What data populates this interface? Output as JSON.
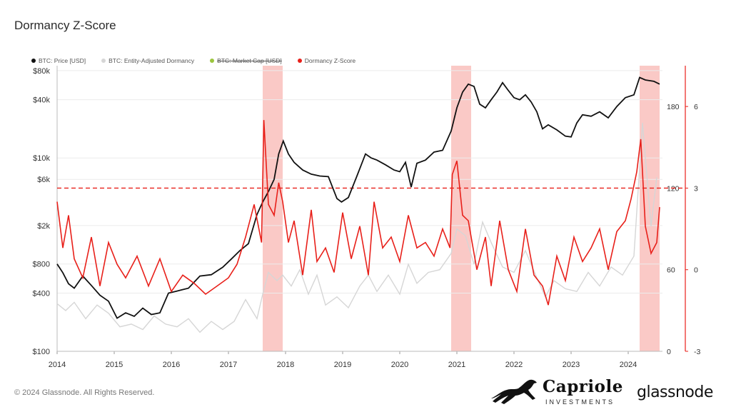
{
  "title": "Dormancy Z-Score",
  "legend": [
    {
      "label": "BTC: Price [USD]",
      "color": "#111111",
      "struck": false
    },
    {
      "label": "BTC: Entity-Adjusted Dormancy",
      "color": "#d6d6d6",
      "struck": false
    },
    {
      "label": "BTC: Market Cap [USD]",
      "color": "#9bc53d",
      "struck": true
    },
    {
      "label": "Dormancy Z-Score",
      "color": "#e8201a",
      "struck": false
    }
  ],
  "footer": {
    "copyright": "© 2024 Glassnode. All Rights Reserved.",
    "capriole_name": "Capriole",
    "capriole_sub": "INVESTMENTS",
    "glassnode": "glassnode"
  },
  "chart_data": {
    "type": "line",
    "x_ticks": [
      "2014",
      "2015",
      "2016",
      "2017",
      "2018",
      "2019",
      "2020",
      "2021",
      "2022",
      "2023",
      "2024"
    ],
    "x_range": [
      2014.0,
      2024.6
    ],
    "left_axis": {
      "scale": "log",
      "ticks": [
        "$100",
        "$400",
        "$800",
        "$2k",
        "$6k",
        "$10k",
        "$40k",
        "$80k"
      ],
      "tick_values": [
        100,
        400,
        800,
        2000,
        6000,
        10000,
        40000,
        80000
      ],
      "range": [
        100,
        90000
      ]
    },
    "right_axis_dormancy": {
      "ticks": [
        "0",
        "60",
        "120",
        "180"
      ],
      "tick_values": [
        0,
        60,
        120,
        180
      ],
      "range": [
        0,
        210
      ]
    },
    "right_axis_zscore": {
      "ticks": [
        "-3",
        "0",
        "3",
        "6"
      ],
      "tick_values": [
        -3,
        0,
        3,
        6
      ],
      "range": [
        -3,
        7.5
      ]
    },
    "threshold_zscore": 3,
    "highlight_periods": [
      [
        2017.6,
        2017.95
      ],
      [
        2020.9,
        2021.25
      ],
      [
        2024.2,
        2024.55
      ]
    ],
    "colors": {
      "price": "#111111",
      "dormancy": "#d6d6d6",
      "zscore": "#e8201a",
      "highlight": "#f8b7b3",
      "threshold": "#e8201a"
    },
    "series": [
      {
        "name": "BTC: Price [USD]",
        "axis": "left",
        "x": [
          2014.0,
          2014.1,
          2014.2,
          2014.3,
          2014.45,
          2014.6,
          2014.75,
          2014.9,
          2015.05,
          2015.2,
          2015.35,
          2015.5,
          2015.65,
          2015.8,
          2015.95,
          2016.1,
          2016.3,
          2016.5,
          2016.7,
          2016.9,
          2017.05,
          2017.2,
          2017.35,
          2017.5,
          2017.6,
          2017.7,
          2017.8,
          2017.88,
          2017.96,
          2018.05,
          2018.15,
          2018.3,
          2018.45,
          2018.6,
          2018.75,
          2018.9,
          2018.98,
          2019.1,
          2019.25,
          2019.4,
          2019.5,
          2019.6,
          2019.75,
          2019.9,
          2020.0,
          2020.1,
          2020.2,
          2020.3,
          2020.45,
          2020.6,
          2020.75,
          2020.9,
          2021.0,
          2021.1,
          2021.2,
          2021.3,
          2021.4,
          2021.5,
          2021.6,
          2021.7,
          2021.8,
          2021.9,
          2022.0,
          2022.1,
          2022.2,
          2022.3,
          2022.4,
          2022.5,
          2022.6,
          2022.75,
          2022.9,
          2023.0,
          2023.1,
          2023.2,
          2023.35,
          2023.5,
          2023.65,
          2023.8,
          2023.95,
          2024.1,
          2024.2,
          2024.3,
          2024.45,
          2024.55
        ],
        "values": [
          800,
          650,
          500,
          450,
          600,
          480,
          380,
          330,
          220,
          250,
          230,
          280,
          240,
          250,
          400,
          420,
          450,
          600,
          620,
          740,
          900,
          1100,
          1300,
          2600,
          3500,
          4500,
          6000,
          11000,
          15000,
          11000,
          9000,
          7500,
          6800,
          6500,
          6400,
          3800,
          3500,
          3900,
          6500,
          11000,
          10000,
          9500,
          8500,
          7500,
          7200,
          9000,
          5000,
          8800,
          9500,
          11500,
          12000,
          19000,
          33000,
          48000,
          58000,
          55000,
          36000,
          33000,
          40000,
          48000,
          60000,
          50000,
          42000,
          40000,
          45000,
          38000,
          30000,
          20000,
          22000,
          19500,
          16800,
          16500,
          23000,
          28000,
          27000,
          30000,
          26000,
          34000,
          42000,
          45000,
          68000,
          64000,
          62000,
          58000
        ]
      },
      {
        "name": "BTC: Entity-Adjusted Dormancy",
        "axis": "right_dormancy",
        "x": [
          2014.0,
          2014.15,
          2014.3,
          2014.5,
          2014.7,
          2014.9,
          2015.1,
          2015.3,
          2015.5,
          2015.7,
          2015.9,
          2016.1,
          2016.3,
          2016.5,
          2016.7,
          2016.9,
          2017.1,
          2017.3,
          2017.5,
          2017.6,
          2017.7,
          2017.85,
          2017.95,
          2018.1,
          2018.25,
          2018.4,
          2018.55,
          2018.7,
          2018.9,
          2019.1,
          2019.3,
          2019.45,
          2019.6,
          2019.8,
          2020.0,
          2020.15,
          2020.3,
          2020.5,
          2020.7,
          2020.9,
          2021.0,
          2021.15,
          2021.3,
          2021.45,
          2021.6,
          2021.8,
          2022.0,
          2022.2,
          2022.4,
          2022.55,
          2022.7,
          2022.9,
          2023.1,
          2023.3,
          2023.5,
          2023.7,
          2023.9,
          2024.1,
          2024.25,
          2024.4,
          2024.5
        ],
        "values": [
          35,
          30,
          36,
          24,
          34,
          28,
          18,
          20,
          16,
          26,
          20,
          18,
          24,
          14,
          22,
          16,
          22,
          38,
          24,
          42,
          58,
          52,
          56,
          48,
          60,
          42,
          56,
          34,
          40,
          32,
          48,
          56,
          44,
          56,
          42,
          64,
          50,
          58,
          60,
          72,
          90,
          85,
          64,
          95,
          80,
          62,
          58,
          74,
          54,
          40,
          52,
          46,
          44,
          58,
          48,
          62,
          56,
          70,
          168,
          92,
          128
        ]
      },
      {
        "name": "Dormancy Z-Score",
        "axis": "right_zscore",
        "x": [
          2014.0,
          2014.1,
          2014.2,
          2014.3,
          2014.45,
          2014.6,
          2014.75,
          2014.9,
          2015.05,
          2015.2,
          2015.4,
          2015.6,
          2015.8,
          2016.0,
          2016.2,
          2016.4,
          2016.6,
          2016.8,
          2017.0,
          2017.15,
          2017.3,
          2017.45,
          2017.58,
          2017.62,
          2017.7,
          2017.8,
          2017.88,
          2017.95,
          2018.05,
          2018.15,
          2018.3,
          2018.45,
          2018.55,
          2018.7,
          2018.85,
          2019.0,
          2019.15,
          2019.3,
          2019.45,
          2019.55,
          2019.7,
          2019.85,
          2020.0,
          2020.15,
          2020.3,
          2020.45,
          2020.6,
          2020.75,
          2020.88,
          2020.92,
          2021.0,
          2021.1,
          2021.2,
          2021.35,
          2021.5,
          2021.6,
          2021.75,
          2021.9,
          2022.05,
          2022.2,
          2022.35,
          2022.5,
          2022.6,
          2022.75,
          2022.9,
          2023.05,
          2023.2,
          2023.35,
          2023.5,
          2023.65,
          2023.8,
          2023.95,
          2024.05,
          2024.15,
          2024.22,
          2024.3,
          2024.4,
          2024.5,
          2024.55
        ],
        "values": [
          2.5,
          0.8,
          2.0,
          0.4,
          -0.3,
          1.2,
          -0.6,
          1.0,
          0.2,
          -0.3,
          0.5,
          -0.6,
          0.4,
          -0.8,
          -0.2,
          -0.5,
          -0.9,
          -0.6,
          -0.3,
          0.2,
          1.2,
          2.4,
          1.0,
          5.5,
          2.4,
          2.0,
          3.2,
          2.5,
          1.0,
          1.8,
          -0.2,
          2.2,
          0.3,
          0.8,
          -0.1,
          2.1,
          0.4,
          1.6,
          -0.2,
          2.5,
          0.8,
          1.2,
          0.3,
          2.0,
          0.8,
          1.0,
          0.5,
          1.5,
          0.8,
          3.5,
          4.0,
          2.0,
          1.8,
          0.0,
          1.2,
          -0.6,
          1.8,
          0.0,
          -0.8,
          1.5,
          -0.2,
          -0.6,
          -1.3,
          0.5,
          -0.4,
          1.2,
          0.3,
          0.8,
          1.5,
          0.0,
          1.4,
          1.8,
          2.6,
          3.6,
          4.8,
          1.6,
          0.6,
          1.0,
          2.3
        ]
      }
    ]
  }
}
